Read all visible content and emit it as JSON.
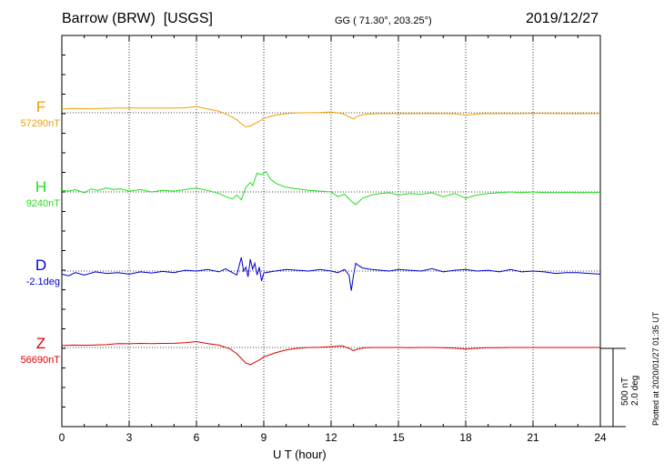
{
  "header": {
    "station": "Barrow (BRW)  [USGS]",
    "coords": "GG ( 71.30°, 203.25°)",
    "date": "2019/12/27"
  },
  "footer": {
    "plotted": "Plotted at 2020/01/27 01:35 UT",
    "scale_nt": "500 nT",
    "scale_deg": "2.0 deg"
  },
  "chart_data": {
    "type": "line",
    "xlabel": "U T (hour)",
    "xlim": [
      0,
      24
    ],
    "xticks": [
      "0",
      "3",
      "6",
      "9",
      "12",
      "15",
      "18",
      "21",
      "24"
    ],
    "grid": true,
    "series": [
      {
        "name": "F",
        "baseline_label": "57290nT",
        "color": "#f0a000",
        "unit": "nT",
        "x": [
          0,
          0.5,
          1,
          1.5,
          2,
          2.5,
          3,
          3.5,
          4,
          4.5,
          5,
          5.5,
          6,
          6.5,
          7,
          7.5,
          7.8,
          8,
          8.2,
          8.4,
          8.6,
          8.8,
          9,
          9.5,
          10,
          10.5,
          11,
          11.5,
          12,
          12.5,
          12.8,
          13,
          13.2,
          13.5,
          14,
          14.5,
          15,
          15.5,
          16,
          16.5,
          17,
          17.5,
          18,
          18.5,
          19,
          19.5,
          20,
          20.5,
          21,
          21.5,
          22,
          22.5,
          23,
          23.5,
          24
        ],
        "values": [
          25,
          28,
          26,
          27,
          29,
          30,
          31,
          30,
          31,
          30,
          31,
          32,
          40,
          25,
          10,
          -20,
          -45,
          -70,
          -90,
          -85,
          -70,
          -55,
          -35,
          -15,
          -5,
          0,
          0,
          2,
          5,
          -5,
          -25,
          -40,
          -20,
          -10,
          -5,
          -5,
          -5,
          -6,
          -5,
          -4,
          -5,
          -6,
          -15,
          -8,
          -5,
          -4,
          -5,
          -5,
          -4,
          -4,
          -5,
          -5,
          -6,
          -5,
          -5
        ]
      },
      {
        "name": "H",
        "baseline_label": "9240nT",
        "color": "#22dd22",
        "unit": "nT",
        "x": [
          0,
          0.3,
          0.6,
          1,
          1.3,
          1.6,
          2,
          2.3,
          2.6,
          3,
          3.5,
          4,
          4.5,
          5,
          5.5,
          6,
          6.5,
          7,
          7.3,
          7.6,
          7.8,
          8,
          8.2,
          8.4,
          8.5,
          8.7,
          8.9,
          9.1,
          9.3,
          9.6,
          10,
          10.5,
          11,
          11.5,
          12,
          12.3,
          12.6,
          12.9,
          13.1,
          13.4,
          13.8,
          14.2,
          14.6,
          15,
          15.5,
          16,
          16.5,
          17,
          17.5,
          18,
          18.5,
          19,
          19.5,
          20,
          20.5,
          21,
          21.5,
          22,
          22.5,
          23,
          23.5,
          24
        ],
        "values": [
          10,
          5,
          15,
          -5,
          20,
          10,
          25,
          15,
          20,
          5,
          15,
          0,
          10,
          5,
          15,
          25,
          10,
          -10,
          -30,
          -45,
          -20,
          -50,
          30,
          60,
          40,
          120,
          110,
          130,
          80,
          50,
          30,
          20,
          10,
          5,
          0,
          -30,
          -15,
          -60,
          -80,
          -40,
          -20,
          -10,
          -5,
          -20,
          -10,
          -15,
          -5,
          -30,
          -10,
          -40,
          -20,
          -10,
          -5,
          0,
          -5,
          0,
          -5,
          -5,
          -3,
          -5,
          -4,
          -3
        ]
      },
      {
        "name": "D",
        "baseline_label": "-2.1deg",
        "color": "#0000cc",
        "unit": "deg",
        "x": [
          0,
          0.3,
          0.6,
          1,
          1.5,
          2,
          2.5,
          3,
          3.5,
          4,
          4.5,
          5,
          5.5,
          6,
          6.5,
          7,
          7.3,
          7.6,
          7.8,
          8,
          8.1,
          8.2,
          8.3,
          8.4,
          8.5,
          8.6,
          8.7,
          8.8,
          8.9,
          9,
          9.5,
          10,
          10.5,
          11,
          11.5,
          12,
          12.3,
          12.6,
          12.8,
          12.9,
          13,
          13.1,
          13.2,
          13.4,
          13.8,
          14.2,
          14.6,
          15,
          15.5,
          16,
          16.5,
          17,
          17.5,
          18,
          18.5,
          19,
          19.5,
          20,
          20.5,
          21,
          21.5,
          22,
          22.5,
          23,
          23.5,
          24
        ],
        "values": [
          -0.08,
          -0.12,
          -0.04,
          -0.1,
          -0.02,
          -0.06,
          -0.04,
          -0.08,
          -0.02,
          -0.05,
          -0.01,
          -0.04,
          0.02,
          0.0,
          0.04,
          -0.02,
          0.06,
          -0.04,
          -0.1,
          0.35,
          0.0,
          0.1,
          -0.15,
          0.3,
          0.05,
          0.2,
          -0.1,
          0.1,
          -0.25,
          -0.05,
          0.0,
          0.04,
          0.02,
          0.0,
          0.04,
          0.0,
          -0.04,
          0.04,
          -0.1,
          -0.5,
          -0.1,
          0.2,
          0.15,
          0.08,
          0.04,
          0.02,
          0.0,
          0.04,
          0.02,
          0.0,
          0.06,
          -0.02,
          0.02,
          0.04,
          0.0,
          0.02,
          -0.02,
          0.04,
          -0.02,
          0.0,
          -0.02,
          -0.06,
          -0.04,
          -0.04,
          -0.06,
          -0.08
        ]
      },
      {
        "name": "Z",
        "baseline_label": "56690nT",
        "color": "#dd0000",
        "unit": "nT",
        "x": [
          0,
          0.5,
          1,
          1.5,
          2,
          2.5,
          3,
          3.5,
          4,
          4.5,
          5,
          5.5,
          6,
          6.5,
          7,
          7.5,
          7.8,
          8,
          8.2,
          8.4,
          8.6,
          8.8,
          9,
          9.5,
          10,
          10.5,
          11,
          11.5,
          12,
          12.5,
          12.8,
          13,
          13.2,
          13.5,
          14,
          14.5,
          15,
          15.5,
          16,
          16.5,
          17,
          17.5,
          18,
          18.5,
          19,
          19.5,
          20,
          20.5,
          21,
          21.5,
          22,
          22.5,
          23,
          23.5,
          24
        ],
        "values": [
          12,
          15,
          14,
          16,
          18,
          25,
          24,
          26,
          25,
          26,
          27,
          30,
          38,
          25,
          15,
          -10,
          -40,
          -70,
          -100,
          -110,
          -95,
          -80,
          -60,
          -35,
          -15,
          -5,
          0,
          2,
          5,
          10,
          -5,
          -20,
          -10,
          -2,
          0,
          0,
          0,
          -2,
          0,
          0,
          -2,
          -4,
          -10,
          -5,
          -2,
          -1,
          0,
          0,
          0,
          0,
          0,
          0,
          0,
          0,
          0
        ]
      }
    ]
  }
}
